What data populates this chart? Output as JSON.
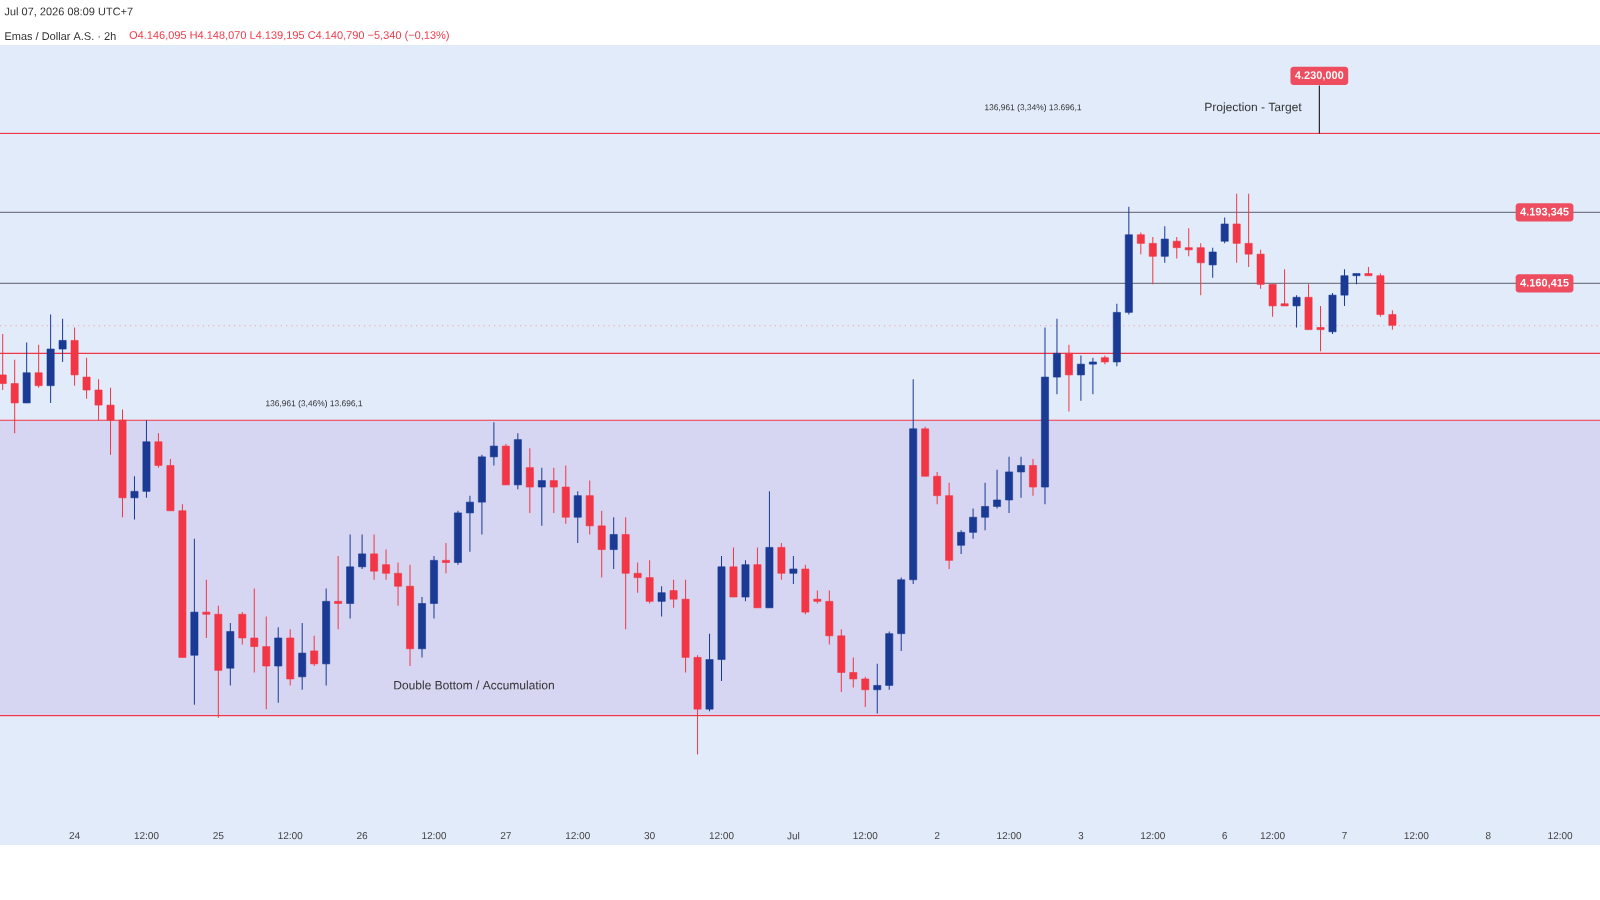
{
  "chart_data": {
    "type": "candlestick",
    "title": "Jul 07, 2026 08:09 UTC+7",
    "subtitle": "Emas / Dollar A.S. · 2h",
    "annotations": [
      "Double Bottom / Accumulation",
      "Projection - Target",
      "136,961 (3,46%) 13.696,1",
      "136,961 (3,34%) 13.696,1",
      "O4.146,095 H4.148,070 L4.139,195 C4.140,790 −5,340 (−0,13%)"
    ],
    "categories": [
      null,
      null,
      null,
      null,
      null,
      null,
      "24",
      null,
      null,
      null,
      null,
      null,
      "12:00",
      null,
      null,
      null,
      null,
      null,
      "25",
      null,
      null,
      null,
      null,
      null,
      "12:00",
      null,
      null,
      null,
      null,
      null,
      "26",
      null,
      null,
      null,
      null,
      null,
      "12:00",
      null,
      null,
      null,
      null,
      null,
      "27",
      null,
      null,
      null,
      null,
      null,
      "12:00",
      null,
      null,
      null,
      null,
      null,
      "30",
      null,
      null,
      null,
      null,
      null,
      "12:00",
      null,
      null,
      null,
      null,
      null,
      "Jul",
      null,
      null,
      null,
      null,
      null,
      "12:00",
      null,
      null,
      null,
      null,
      null,
      "2",
      null,
      null,
      null,
      null,
      null,
      "12:00",
      null,
      null,
      null,
      null,
      null,
      "3",
      null,
      null,
      null,
      null,
      null,
      "12:00",
      null,
      null,
      null,
      null,
      null,
      "6",
      null,
      null,
      null,
      "12:00",
      null,
      null,
      null,
      null,
      null,
      "7",
      null,
      null,
      null,
      null,
      null,
      "12:00",
      null,
      null,
      null,
      null,
      null,
      "8",
      null,
      null,
      null,
      null,
      null,
      "12:00",
      null,
      null,
      null
    ],
    "ohlc": [
      [
        4118,
        4137,
        4111,
        4114
      ],
      [
        4114,
        4125,
        4091,
        4105
      ],
      [
        4105,
        4133,
        4105,
        4119
      ],
      [
        4119,
        4132,
        4112,
        4113
      ],
      [
        4113,
        4146,
        4105,
        4130
      ],
      [
        4130,
        4144,
        4124,
        4134
      ],
      [
        4134,
        4140,
        4113,
        4118
      ],
      [
        4117,
        4126,
        4107,
        4111
      ],
      [
        4111,
        4116,
        4097,
        4104
      ],
      [
        4104,
        4112,
        4081,
        4097
      ],
      [
        4097,
        4102,
        4052,
        4061
      ],
      [
        4061,
        4071,
        4051,
        4064
      ],
      [
        4064,
        4097,
        4061,
        4087
      ],
      [
        4087,
        4091,
        4075,
        4076
      ],
      [
        4076,
        4079,
        4055,
        4055
      ],
      [
        4055,
        4058,
        3987,
        3987
      ],
      [
        3988,
        4042,
        3965,
        4008
      ],
      [
        4008,
        4023,
        3996,
        4007
      ],
      [
        4007,
        4011,
        3959,
        3981
      ],
      [
        3982,
        4003,
        3974,
        3999
      ],
      [
        4007,
        4008,
        3993,
        3996
      ],
      [
        3996,
        4019,
        3980,
        3992
      ],
      [
        3992,
        4006,
        3963,
        3983
      ],
      [
        3983,
        4001,
        3966,
        3996
      ],
      [
        3996,
        4000,
        3974,
        3977
      ],
      [
        3978,
        4003,
        3972,
        3989
      ],
      [
        3990,
        3997,
        3983,
        3984
      ],
      [
        3984,
        4019,
        3974,
        4013
      ],
      [
        4013,
        4034,
        4000,
        4012
      ],
      [
        4012,
        4044,
        4005,
        4029
      ],
      [
        4029,
        4044,
        4028,
        4035
      ],
      [
        4035,
        4044,
        4023,
        4027
      ],
      [
        4030,
        4037,
        4023,
        4026
      ],
      [
        4026,
        4031,
        4011,
        4020
      ],
      [
        4020,
        4030,
        3983,
        3991
      ],
      [
        3991,
        4015,
        3987,
        4012
      ],
      [
        4012,
        4034,
        4005,
        4032
      ],
      [
        4032,
        4040,
        4026,
        4031
      ],
      [
        4031,
        4055,
        4030,
        4054
      ],
      [
        4054,
        4062,
        4036,
        4059
      ],
      [
        4059,
        4081,
        4044,
        4080
      ],
      [
        4080,
        4096,
        4076,
        4085
      ],
      [
        4085,
        4086,
        4067,
        4067
      ],
      [
        4067,
        4091,
        4065,
        4088
      ],
      [
        4075,
        4084,
        4054,
        4066
      ],
      [
        4066,
        4075,
        4048,
        4069
      ],
      [
        4069,
        4075,
        4054,
        4066
      ],
      [
        4066,
        4076,
        4049,
        4052
      ],
      [
        4052,
        4064,
        4040,
        4062
      ],
      [
        4062,
        4069,
        4044,
        4048
      ],
      [
        4048,
        4055,
        4024,
        4037
      ],
      [
        4037,
        4052,
        4028,
        4044
      ],
      [
        4044,
        4052,
        4000,
        4026
      ],
      [
        4026,
        4031,
        4017,
        4024
      ],
      [
        4024,
        4032,
        4012,
        4013
      ],
      [
        4013,
        4020,
        4006,
        4017
      ],
      [
        4018,
        4023,
        4010,
        4014
      ],
      [
        4014,
        4023,
        3980,
        3987
      ],
      [
        3987,
        3988,
        3942,
        3963
      ],
      [
        3963,
        3998,
        3962,
        3986
      ],
      [
        3986,
        4034,
        3976,
        4029
      ],
      [
        4029,
        4038,
        4015,
        4015
      ],
      [
        4015,
        4032,
        4013,
        4030
      ],
      [
        4030,
        4038,
        4010,
        4010
      ],
      [
        4010,
        4064,
        4010,
        4038
      ],
      [
        4038,
        4040,
        4023,
        4026
      ],
      [
        4026,
        4034,
        4021,
        4028
      ],
      [
        4028,
        4030,
        4007,
        4008
      ],
      [
        4014,
        4018,
        4012,
        4013
      ],
      [
        4013,
        4018,
        3993,
        3997
      ],
      [
        3997,
        4000,
        3971,
        3980
      ],
      [
        3980,
        3987,
        3973,
        3977
      ],
      [
        3977,
        3978,
        3964,
        3972
      ],
      [
        3972,
        3984,
        3961,
        3974
      ],
      [
        3974,
        3999,
        3972,
        3998
      ],
      [
        3998,
        4024,
        3990,
        4023
      ],
      [
        4023,
        4116,
        4021,
        4093
      ],
      [
        4093,
        4094,
        4071,
        4071
      ],
      [
        4071,
        4073,
        4058,
        4062
      ],
      [
        4062,
        4068,
        4028,
        4032
      ],
      [
        4039,
        4046,
        4035,
        4045
      ],
      [
        4045,
        4056,
        4042,
        4052
      ],
      [
        4052,
        4068,
        4046,
        4057
      ],
      [
        4057,
        4074,
        4056,
        4060
      ],
      [
        4060,
        4080,
        4054,
        4073
      ],
      [
        4073,
        4080,
        4061,
        4076
      ],
      [
        4076,
        4079,
        4062,
        4066
      ],
      [
        4066,
        4140,
        4058,
        4117
      ],
      [
        4117,
        4144,
        4109,
        4128
      ],
      [
        4128,
        4132,
        4101,
        4118
      ],
      [
        4118,
        4127,
        4106,
        4123
      ],
      [
        4123,
        4126,
        4109,
        4124
      ],
      [
        4126,
        4127,
        4123,
        4124
      ],
      [
        4124,
        4151,
        4122,
        4147
      ],
      [
        4147,
        4196,
        4146,
        4183
      ],
      [
        4183,
        4184,
        4174,
        4179
      ],
      [
        4179,
        4182,
        4160,
        4173
      ],
      [
        4173,
        4187,
        4170,
        4181
      ],
      [
        4180,
        4182,
        4172,
        4177
      ],
      [
        4177,
        4186,
        4173,
        4176
      ],
      [
        4177,
        4179,
        4155,
        4170
      ],
      [
        4169,
        4177,
        4163,
        4175
      ],
      [
        4180,
        4191,
        4179,
        4188
      ],
      [
        4188,
        4202,
        4170,
        4179
      ],
      [
        4179,
        4202,
        4168,
        4174
      ],
      [
        4174,
        4176,
        4158,
        4160
      ],
      [
        4160,
        4160,
        4145,
        4150
      ],
      [
        4151,
        4167,
        4150,
        4150
      ],
      [
        4150,
        4155,
        4140,
        4154
      ],
      [
        4154,
        4160,
        4139,
        4139
      ],
      [
        4140,
        4150,
        4129,
        4139
      ],
      [
        4138,
        4156,
        4137,
        4155
      ],
      [
        4155,
        4167,
        4150,
        4164
      ],
      [
        4164,
        4165,
        4160,
        4165
      ],
      [
        4165,
        4168,
        4164,
        4164
      ],
      [
        4164,
        4165,
        4145,
        4146
      ],
      [
        4146,
        4148,
        4139,
        4141
      ],
      null,
      null,
      null,
      null,
      null,
      null,
      null,
      null,
      null,
      null,
      null,
      null,
      null,
      null,
      null,
      null,
      null
    ],
    "colors": [
      "#f23645",
      "#f23645",
      "#1a3a94",
      "#f23645",
      "#1a3a94",
      "#1a3a94",
      "#f23645",
      "#f23645",
      "#f23645",
      "#f23645",
      "#f23645",
      "#1a3a94",
      "#1a3a94",
      "#f23645",
      "#f23645",
      "#f23645",
      "#1a3a94",
      "#f23645",
      "#f23645",
      "#1a3a94",
      "#f23645",
      "#f23645",
      "#f23645",
      "#1a3a94",
      "#f23645",
      "#1a3a94",
      "#f23645",
      "#1a3a94",
      "#f23645",
      "#1a3a94",
      "#1a3a94",
      "#f23645",
      "#f23645",
      "#f23645",
      "#f23645",
      "#1a3a94",
      "#1a3a94",
      "#f23645",
      "#1a3a94",
      "#1a3a94",
      "#1a3a94",
      "#1a3a94",
      "#f23645",
      "#1a3a94",
      "#f23645",
      "#1a3a94",
      "#f23645",
      "#f23645",
      "#1a3a94",
      "#f23645",
      "#f23645",
      "#1a3a94",
      "#f23645",
      "#f23645",
      "#f23645",
      "#1a3a94",
      "#f23645",
      "#f23645",
      "#f23645",
      "#1a3a94",
      "#1a3a94",
      "#f23645",
      "#1a3a94",
      "#f23645",
      "#1a3a94",
      "#f23645",
      "#1a3a94",
      "#f23645",
      "#f23645",
      "#f23645",
      "#f23645",
      "#f23645",
      "#f23645",
      "#1a3a94",
      "#1a3a94",
      "#1a3a94",
      "#1a3a94",
      "#f23645",
      "#f23645",
      "#f23645",
      "#1a3a94",
      "#1a3a94",
      "#1a3a94",
      "#1a3a94",
      "#1a3a94",
      "#1a3a94",
      "#f23645",
      "#1a3a94",
      "#1a3a94",
      "#f23645",
      "#1a3a94",
      "#1a3a94",
      "#f23645",
      "#1a3a94",
      "#1a3a94",
      "#f23645",
      "#f23645",
      "#1a3a94",
      "#f23645",
      "#f23645",
      "#f23645",
      "#1a3a94",
      "#1a3a94",
      "#f23645",
      "#f23645",
      "#f23645",
      "#f23645",
      "#f23645",
      "#1a3a94",
      "#f23645",
      "#f23645",
      "#1a3a94",
      "#1a3a94",
      "#1a3a94",
      "#f23645",
      "#f23645",
      "#f23645",
      null,
      null,
      null,
      null,
      null,
      null,
      null,
      null,
      null,
      null,
      null,
      null,
      null,
      null,
      null,
      null,
      null
    ],
    "ylim": [
      3900,
      4271
    ],
    "ref_lines": [
      {
        "axis": "y",
        "value": 4230,
        "label": "4.230,000",
        "color": "#f23645"
      },
      {
        "axis": "y",
        "value": 4193.345,
        "label": "4.193,345",
        "color": "#787b86"
      },
      {
        "axis": "y",
        "value": 4160.415,
        "label": "4.160,415",
        "color": "#787b86"
      },
      {
        "axis": "y",
        "value": 4140.79,
        "color": "#f5a0a8",
        "line_style": "dotted"
      },
      {
        "axis": "y",
        "value": 4128,
        "color": "#f23645"
      },
      {
        "axis": "y",
        "value": 4097,
        "color": "#f23645"
      },
      {
        "axis": "y",
        "value": 3960,
        "color": "#f23645"
      }
    ],
    "bands": [
      {
        "axis": "y",
        "from": 3960,
        "to": 4097,
        "color": "#d6d6f2"
      }
    ]
  }
}
